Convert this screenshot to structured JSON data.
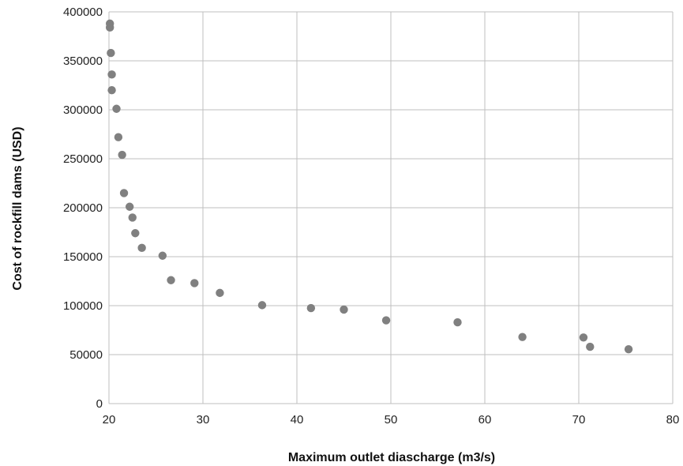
{
  "chart_data": {
    "type": "scatter",
    "title": "",
    "xlabel": "Maximum outlet diascharge (m3/s)",
    "ylabel": "Cost of rockfill dams (USD)",
    "xlim": [
      20,
      80
    ],
    "ylim": [
      0,
      400000
    ],
    "x_ticks": [
      20,
      30,
      40,
      50,
      60,
      70,
      80
    ],
    "y_ticks": [
      0,
      50000,
      100000,
      150000,
      200000,
      250000,
      300000,
      350000,
      400000
    ],
    "x_tick_labels": [
      "20",
      "30",
      "40",
      "50",
      "60",
      "70",
      "80"
    ],
    "y_tick_labels": [
      "0",
      "50000",
      "100000",
      "150000",
      "200000",
      "250000",
      "300000",
      "350000",
      "400000"
    ],
    "grid": true,
    "legend": "none",
    "marker_color": "#808080",
    "grid_color": "#bfbfbf",
    "series": [
      {
        "x": [
          20.1,
          20.1,
          20.2,
          20.3,
          20.3,
          20.8,
          21.0,
          21.4,
          21.6,
          22.2,
          22.5,
          22.8,
          23.5,
          25.7,
          26.6,
          29.1,
          31.8,
          36.3,
          41.5,
          45.0,
          49.5,
          57.1,
          64.0,
          70.5,
          71.2,
          75.3
        ],
        "y": [
          388000,
          384000,
          358000,
          336000,
          320000,
          301000,
          272000,
          254000,
          215000,
          201000,
          190000,
          174000,
          159000,
          151000,
          126000,
          123000,
          113000,
          100500,
          97500,
          96000,
          85000,
          83000,
          68000,
          67500,
          58000,
          55500
        ]
      }
    ]
  }
}
